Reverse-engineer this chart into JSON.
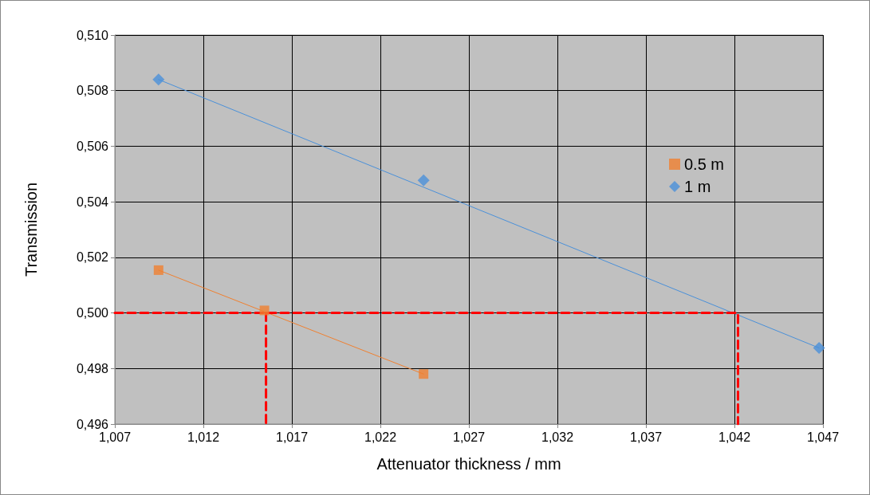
{
  "chart_data": {
    "type": "scatter",
    "xlabel": "Attenuator thickness / mm",
    "ylabel": "Transmission",
    "xlim": [
      1.007,
      1.047
    ],
    "ylim": [
      0.496,
      0.51
    ],
    "xticks": [
      {
        "value": 1.007,
        "label": "1,007"
      },
      {
        "value": 1.012,
        "label": "1,012"
      },
      {
        "value": 1.017,
        "label": "1,017"
      },
      {
        "value": 1.022,
        "label": "1,022"
      },
      {
        "value": 1.027,
        "label": "1,027"
      },
      {
        "value": 1.032,
        "label": "1,032"
      },
      {
        "value": 1.037,
        "label": "1,037"
      },
      {
        "value": 1.042,
        "label": "1,042"
      },
      {
        "value": 1.047,
        "label": "1,047"
      }
    ],
    "yticks": [
      {
        "value": 0.496,
        "label": "0,496"
      },
      {
        "value": 0.498,
        "label": "0,498"
      },
      {
        "value": 0.5,
        "label": "0,500"
      },
      {
        "value": 0.502,
        "label": "0,502"
      },
      {
        "value": 0.504,
        "label": "0,504"
      },
      {
        "value": 0.506,
        "label": "0,506"
      },
      {
        "value": 0.508,
        "label": "0,508"
      },
      {
        "value": 0.51,
        "label": "0,510"
      }
    ],
    "grid": true,
    "legend": "right",
    "series": [
      {
        "name": "0.5 m",
        "marker": "square",
        "color": "#f08030",
        "x": [
          1.00947,
          1.01545,
          1.02444
        ],
        "values": [
          0.50154,
          0.50009,
          0.4978
        ]
      },
      {
        "name": "1 m",
        "marker": "diamond",
        "color": "#4a90d9",
        "x": [
          1.00947,
          1.02444,
          1.04678
        ],
        "values": [
          0.5084,
          0.50477,
          0.49874
        ]
      },
      {
        "type": "line",
        "marker": "none",
        "line_style": "solid",
        "color": "#f08030",
        "x": [
          1.00947,
          1.02444
        ],
        "values": [
          0.50154,
          0.4978
        ]
      },
      {
        "type": "line",
        "marker": "none",
        "line_style": "solid",
        "color": "#4a90d9",
        "x": [
          1.00947,
          1.04678
        ],
        "values": [
          0.5084,
          0.49874
        ]
      },
      {
        "type": "line",
        "marker": "none",
        "line_style": "dashed",
        "color": "#ff0000",
        "x": [
          1.007,
          1.0422,
          1.0422
        ],
        "values": [
          0.5,
          0.5,
          0.496
        ]
      },
      {
        "type": "line",
        "marker": "none",
        "line_style": "dashed",
        "color": "#ff0000",
        "x": [
          1.01554,
          1.01554
        ],
        "values": [
          0.5,
          0.496
        ]
      }
    ]
  }
}
